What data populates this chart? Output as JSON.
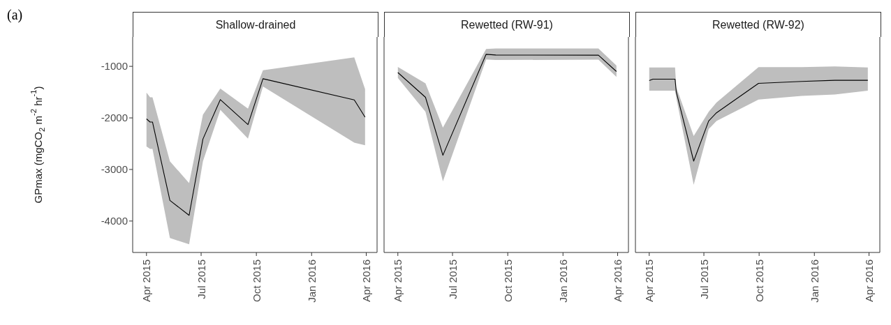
{
  "chart_data": [
    {
      "type": "line",
      "title": "Shallow-drained",
      "ylabel": "GPmax (mgCO$_{2}$ m$^{-2}$ hr$^{-1}$)",
      "annotations": [
        "(a)"
      ],
      "x": [
        "2015-04-01",
        "2015-04-07",
        "2015-04-11",
        "2015-05-10",
        "2015-06-11",
        "2015-07-04",
        "2015-08-02",
        "2015-09-17",
        "2015-10-12",
        "2016-03-12",
        "2016-03-30"
      ],
      "series": [
        {
          "color": "#000000",
          "values": [
            -2020,
            -2080,
            -2080,
            -3600,
            -3890,
            -2410,
            -1645,
            -2130,
            -1240,
            -1650,
            -1985
          ],
          "lower": [
            -2555,
            -2600,
            -2600,
            -4330,
            -4450,
            -2840,
            -1845,
            -2400,
            -1390,
            -2480,
            -2530
          ],
          "upper": [
            -1510,
            -1600,
            -1600,
            -2840,
            -3265,
            -1940,
            -1430,
            -1820,
            -1075,
            -825,
            -1440
          ]
        }
      ],
      "xlim": [
        "2015-03-09",
        "2016-04-19"
      ],
      "xticks": [
        {
          "value": "2015-04",
          "label": "Apr 2015"
        },
        {
          "value": "2015-07",
          "label": "Jul 2015"
        },
        {
          "value": "2015-10",
          "label": "Oct 2015"
        },
        {
          "value": "2016-01",
          "label": "Jan 2016"
        },
        {
          "value": "2016-04",
          "label": "Apr 2016"
        }
      ],
      "ylim": [
        -4610,
        -430
      ],
      "yticks": [
        -4000,
        -3000,
        -2000,
        -1000
      ]
    },
    {
      "type": "line",
      "title": "Rewetted (RW-91)",
      "x": [
        "2015-04-01",
        "2015-05-17",
        "2015-06-15",
        "2015-08-26",
        "2015-09-11",
        "2016-02-29",
        "2016-03-30"
      ],
      "series": [
        {
          "color": "#000000",
          "values": [
            -1120,
            -1600,
            -2725,
            -766,
            -780,
            -784,
            -1100
          ],
          "lower": [
            -1225,
            -1880,
            -3230,
            -865,
            -878,
            -869,
            -1203
          ],
          "upper": [
            -1013,
            -1330,
            -2190,
            -662,
            -653,
            -653,
            -986
          ]
        }
      ],
      "xlim": [
        "2015-03-09",
        "2016-04-19"
      ],
      "xticks": [
        {
          "value": "2015-04",
          "label": "Apr 2015"
        },
        {
          "value": "2015-07",
          "label": "Jul 2015"
        },
        {
          "value": "2015-10",
          "label": "Oct 2015"
        },
        {
          "value": "2016-01",
          "label": "Jan 2016"
        },
        {
          "value": "2016-04",
          "label": "Apr 2016"
        }
      ],
      "ylim": [
        -4610,
        -430
      ],
      "yticks": [
        -4000,
        -3000,
        -2000,
        -1000
      ],
      "tick_labels": "x"
    },
    {
      "type": "line",
      "title": "Rewetted (RW-92)",
      "x": [
        "2015-04-01",
        "2015-04-07",
        "2015-05-14",
        "2015-05-16",
        "2015-06-14",
        "2015-07-09",
        "2015-07-22",
        "2015-09-30",
        "2015-12-11",
        "2016-02-04",
        "2016-03-30"
      ],
      "series": [
        {
          "color": "#000000",
          "values": [
            -1275,
            -1248,
            -1248,
            -1495,
            -2838,
            -2059,
            -1901,
            -1329,
            -1293,
            -1270,
            -1270
          ],
          "lower": [
            -1473,
            -1473,
            -1473,
            -1610,
            -3297,
            -2216,
            -2059,
            -1644,
            -1572,
            -1545,
            -1473
          ],
          "upper": [
            -1023,
            -1023,
            -1023,
            -1405,
            -2350,
            -1880,
            -1700,
            -1014,
            -1014,
            -1000,
            -1023
          ]
        }
      ],
      "xlim": [
        "2015-03-09",
        "2016-04-19"
      ],
      "xticks": [
        {
          "value": "2015-04",
          "label": "Apr 2015"
        },
        {
          "value": "2015-07",
          "label": "Jul 2015"
        },
        {
          "value": "2015-10",
          "label": "Oct 2015"
        },
        {
          "value": "2016-01",
          "label": "Jan 2016"
        },
        {
          "value": "2016-04",
          "label": "Apr 2016"
        }
      ],
      "ylim": [
        -4610,
        -430
      ],
      "yticks": [
        -4000,
        -3000,
        -2000,
        -1000
      ],
      "tick_labels": "x"
    }
  ]
}
